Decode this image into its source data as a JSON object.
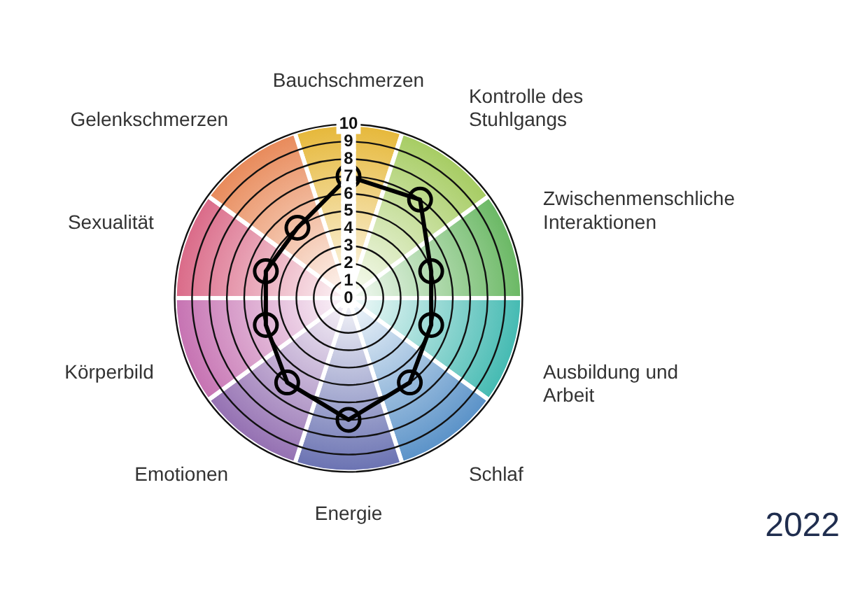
{
  "chart_data": {
    "type": "radar",
    "categories": [
      "Bauchschmerzen",
      "Kontrolle des Stuhlgangs",
      "Zwischenmenschliche Interaktionen",
      "Ausbildung und Arbeit",
      "Schlaf",
      "Energie",
      "Emotionen",
      "Körperbild",
      "Sexualität",
      "Gelenkschmerzen"
    ],
    "colors": [
      "#e6b83a",
      "#a6cc62",
      "#6ab864",
      "#44bab2",
      "#5a92c8",
      "#6a72b2",
      "#9470b2",
      "#c672b2",
      "#da6a88",
      "#e88a5a"
    ],
    "series": [
      {
        "color": "#000000",
        "values": [
          7,
          7,
          5,
          5,
          6,
          7,
          6,
          5,
          5,
          5
        ]
      }
    ],
    "ylim": [
      0,
      10
    ],
    "yticks": [
      0,
      1,
      2,
      3,
      4,
      5,
      6,
      7,
      8,
      9,
      10
    ],
    "grid": true,
    "marker": "circle",
    "line_style": "solid",
    "annotations": [
      "2022"
    ]
  }
}
